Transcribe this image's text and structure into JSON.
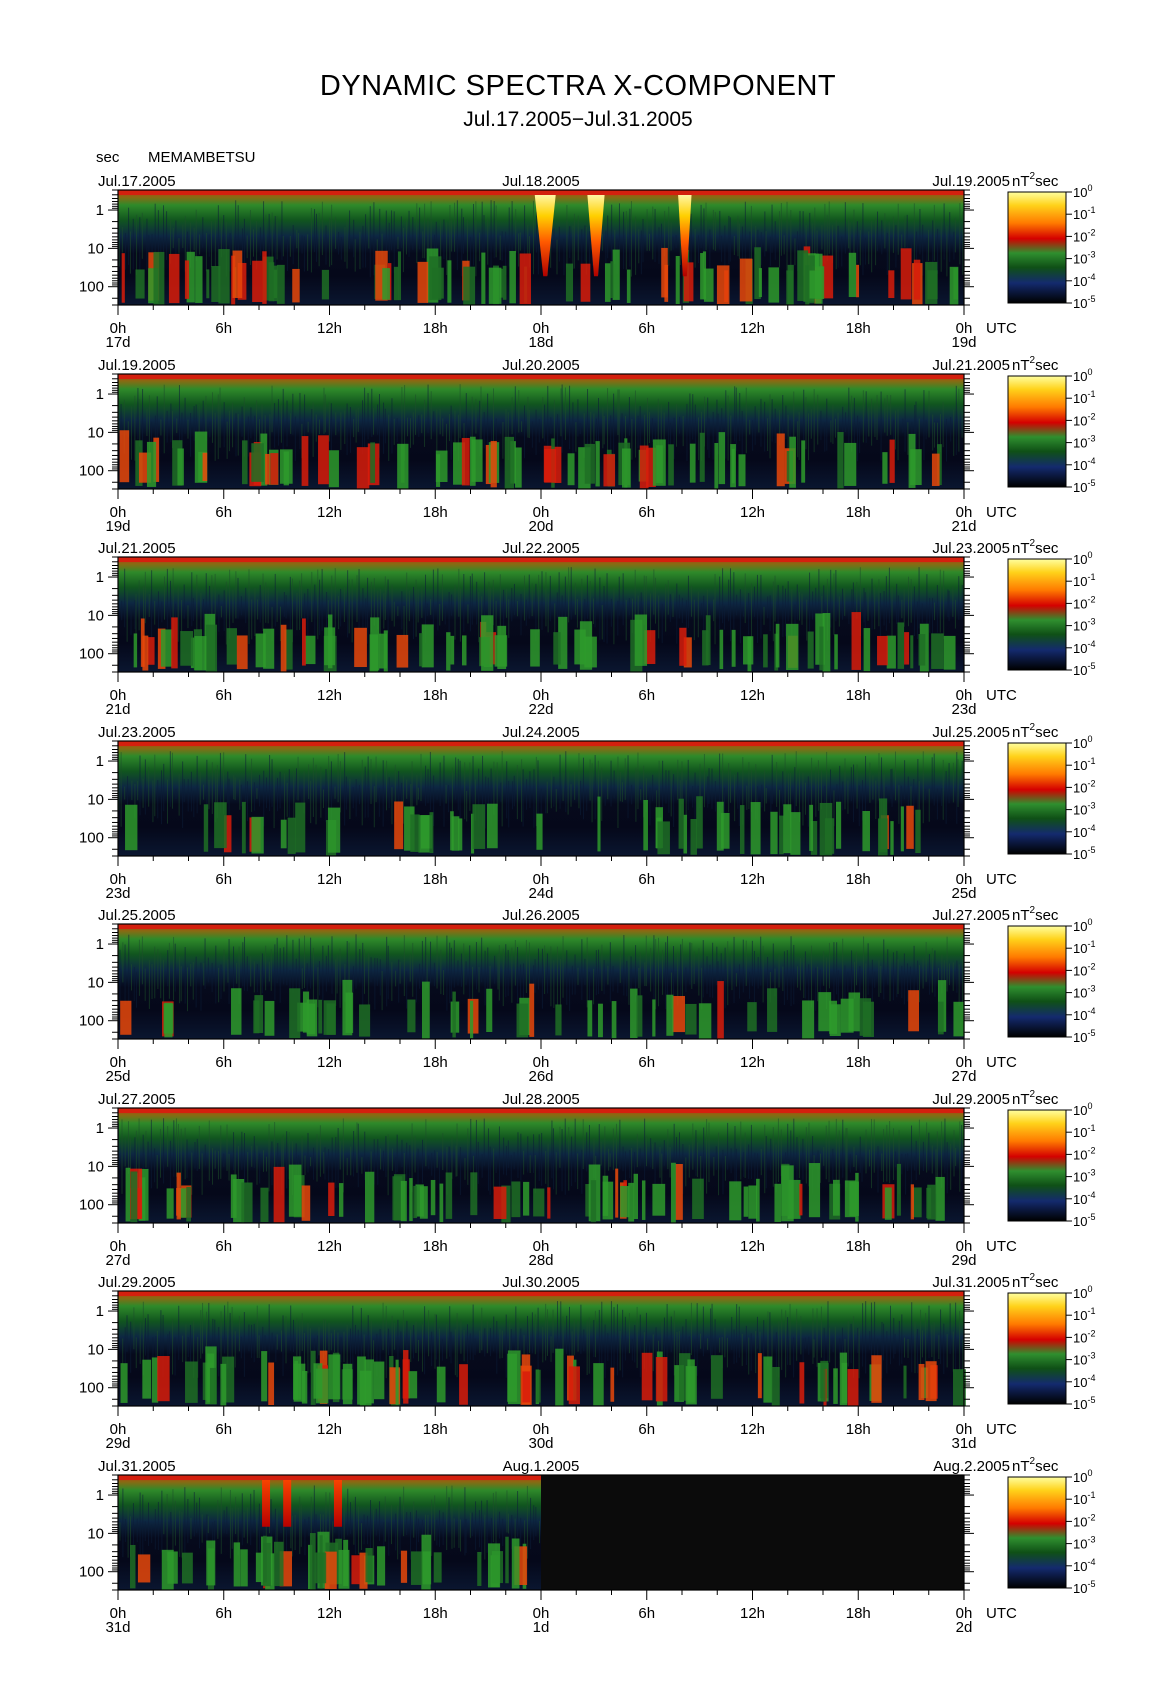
{
  "title": "DYNAMIC SPECTRA X-COMPONENT",
  "subtitle": "Jul.17.2005−Jul.31.2005",
  "station": "MEMAMBETSU",
  "unit_label": "sec",
  "colorbar_unit": "nT",
  "colorbar_unit_exp": "2",
  "colorbar_unit_suffix": "sec",
  "x_unit": "UTC",
  "chart_data": {
    "type": "heatmap",
    "yaxis": {
      "label": "sec",
      "ticks": [
        "1",
        "10",
        "100"
      ],
      "scale": "log",
      "range_sec": [
        0.3,
        300
      ]
    },
    "xaxis": {
      "ticks": [
        "0h",
        "6h",
        "12h",
        "18h",
        "0h",
        "6h",
        "12h",
        "18h",
        "0h"
      ],
      "unit": "UTC"
    },
    "colorbar": {
      "scale": "log",
      "ticks": [
        "10^0",
        "10^-1",
        "10^-2",
        "10^-3",
        "10^-4",
        "10^-5"
      ],
      "unit": "nT^2 sec",
      "colors": [
        "#ffff99",
        "#ffcc00",
        "#ff6600",
        "#d40000",
        "#2e8b2e",
        "#0f4a14",
        "#142a6e",
        "#000000"
      ]
    },
    "panels": [
      {
        "left_date": "Jul.17.2005",
        "mid_date": "Jul.18.2005",
        "right_date": "Jul.19.2005",
        "day_labels": [
          "17d",
          "18d",
          "19d"
        ],
        "activity": "storm"
      },
      {
        "left_date": "Jul.19.2005",
        "mid_date": "Jul.20.2005",
        "right_date": "Jul.21.2005",
        "day_labels": [
          "19d",
          "20d",
          "21d"
        ],
        "activity": "moderate"
      },
      {
        "left_date": "Jul.21.2005",
        "mid_date": "Jul.22.2005",
        "right_date": "Jul.23.2005",
        "day_labels": [
          "21d",
          "22d",
          "23d"
        ],
        "activity": "moderate"
      },
      {
        "left_date": "Jul.23.2005",
        "mid_date": "Jul.24.2005",
        "right_date": "Jul.25.2005",
        "day_labels": [
          "23d",
          "24d",
          "25d"
        ],
        "activity": "quiet"
      },
      {
        "left_date": "Jul.25.2005",
        "mid_date": "Jul.26.2005",
        "right_date": "Jul.27.2005",
        "day_labels": [
          "25d",
          "26d",
          "27d"
        ],
        "activity": "quiet"
      },
      {
        "left_date": "Jul.27.2005",
        "mid_date": "Jul.28.2005",
        "right_date": "Jul.29.2005",
        "day_labels": [
          "27d",
          "28d",
          "29d"
        ],
        "activity": "moderate"
      },
      {
        "left_date": "Jul.29.2005",
        "mid_date": "Jul.30.2005",
        "right_date": "Jul.31.2005",
        "day_labels": [
          "29d",
          "30d",
          "31d"
        ],
        "activity": "moderate"
      },
      {
        "left_date": "Jul.31.2005",
        "mid_date": "Aug.1.2005",
        "right_date": "Aug.2.2005",
        "day_labels": [
          "31d",
          "1d",
          "2d"
        ],
        "activity": "partial",
        "data_ends_fraction": 0.5
      }
    ]
  }
}
